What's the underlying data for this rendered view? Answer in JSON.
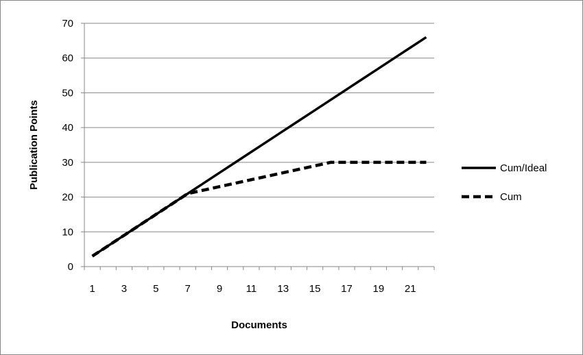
{
  "chart_data": {
    "type": "line",
    "title": "",
    "xlabel": "Documents",
    "ylabel": "Publication Points",
    "ylim": [
      0,
      70
    ],
    "y_ticks": [
      0,
      10,
      20,
      30,
      40,
      50,
      60,
      70
    ],
    "x": [
      1,
      2,
      3,
      4,
      5,
      6,
      7,
      8,
      9,
      10,
      11,
      12,
      13,
      14,
      15,
      16,
      17,
      18,
      19,
      20,
      21,
      22
    ],
    "x_tick_labels": [
      "1",
      "3",
      "5",
      "7",
      "9",
      "11",
      "13",
      "15",
      "17",
      "19",
      "21"
    ],
    "grid": "horizontal",
    "legend_position": "right",
    "series": [
      {
        "name": "Cum/Ideal",
        "style": "solid",
        "color": "#000000",
        "values": [
          3,
          6,
          9,
          12,
          15,
          18,
          21,
          24,
          27,
          30,
          33,
          36,
          39,
          42,
          45,
          48,
          51,
          54,
          57,
          60,
          63,
          66
        ]
      },
      {
        "name": "Cum",
        "style": "dashed",
        "color": "#000000",
        "values": [
          3,
          6,
          9,
          12,
          15,
          18,
          21,
          22,
          23,
          24,
          25,
          26,
          27,
          28,
          29,
          30,
          30,
          30,
          30,
          30,
          30,
          30
        ]
      }
    ]
  }
}
